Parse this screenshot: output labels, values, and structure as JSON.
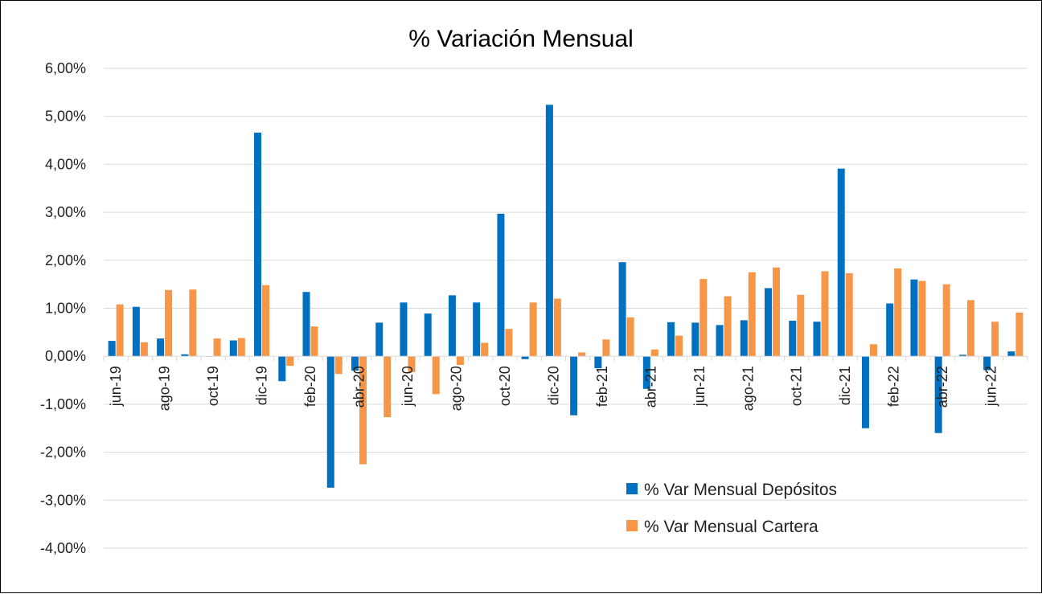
{
  "chart_data": {
    "type": "bar",
    "title": "% Variación Mensual",
    "xlabel": "",
    "ylabel": "",
    "ylim": [
      -4,
      6
    ],
    "y_ticks": [
      6,
      5,
      4,
      3,
      2,
      1,
      0,
      -1,
      -2,
      -3,
      -4
    ],
    "y_tick_labels": [
      "6,00%",
      "5,00%",
      "4,00%",
      "3,00%",
      "2,00%",
      "1,00%",
      "0,00%",
      "-1,00%",
      "-2,00%",
      "-3,00%",
      "-4,00%"
    ],
    "grid": true,
    "legend_position": "bottom-right",
    "categories": [
      "jun-19",
      "jul-19",
      "ago-19",
      "sep-19",
      "oct-19",
      "nov-19",
      "dic-19",
      "ene-20",
      "feb-20",
      "mar-20",
      "abr-20",
      "may-20",
      "jun-20",
      "jul-20",
      "ago-20",
      "sep-20",
      "oct-20",
      "nov-20",
      "dic-20",
      "ene-21",
      "feb-21",
      "mar-21",
      "abr-21",
      "may-21",
      "jun-21",
      "jul-21",
      "ago-21",
      "sep-21",
      "oct-21",
      "nov-21",
      "dic-21",
      "ene-22",
      "feb-22",
      "mar-22",
      "abr-22",
      "may-22",
      "jun-22",
      "jul-22"
    ],
    "x_tick_labels": [
      "jun-19",
      "",
      "ago-19",
      "",
      "oct-19",
      "",
      "dic-19",
      "",
      "feb-20",
      "",
      "abr-20",
      "",
      "jun-20",
      "",
      "ago-20",
      "",
      "oct-20",
      "",
      "dic-20",
      "",
      "feb-21",
      "",
      "abr-21",
      "",
      "jun-21",
      "",
      "ago-21",
      "",
      "oct-21",
      "",
      "dic-21",
      "",
      "feb-22",
      "",
      "abr-22",
      "",
      "jun-22",
      ""
    ],
    "series": [
      {
        "name": "% Var Mensual Depósitos",
        "color": "#0070C0",
        "values": [
          0.32,
          1.03,
          0.37,
          0.04,
          0.0,
          0.33,
          4.66,
          -0.52,
          1.34,
          -2.74,
          -0.3,
          0.7,
          1.12,
          0.89,
          1.27,
          1.12,
          2.97,
          -0.06,
          5.24,
          -1.23,
          -0.25,
          1.96,
          -0.68,
          0.71,
          0.7,
          0.65,
          0.75,
          1.42,
          0.74,
          0.72,
          3.91,
          -1.5,
          1.1,
          1.6,
          -1.6,
          0.03,
          -0.29,
          0.1
        ]
      },
      {
        "name": "% Var Mensual Cartera",
        "color": "#F79646",
        "values": [
          1.08,
          0.29,
          1.38,
          1.39,
          0.37,
          0.38,
          1.48,
          -0.2,
          0.62,
          -0.37,
          -2.25,
          -1.27,
          -0.33,
          -0.79,
          -0.18,
          0.28,
          0.57,
          1.12,
          1.2,
          0.08,
          0.35,
          0.81,
          0.14,
          0.43,
          1.61,
          1.25,
          1.75,
          1.85,
          1.28,
          1.77,
          1.73,
          0.25,
          1.83,
          1.57,
          1.5,
          1.17,
          0.72,
          0.91
        ]
      }
    ]
  }
}
